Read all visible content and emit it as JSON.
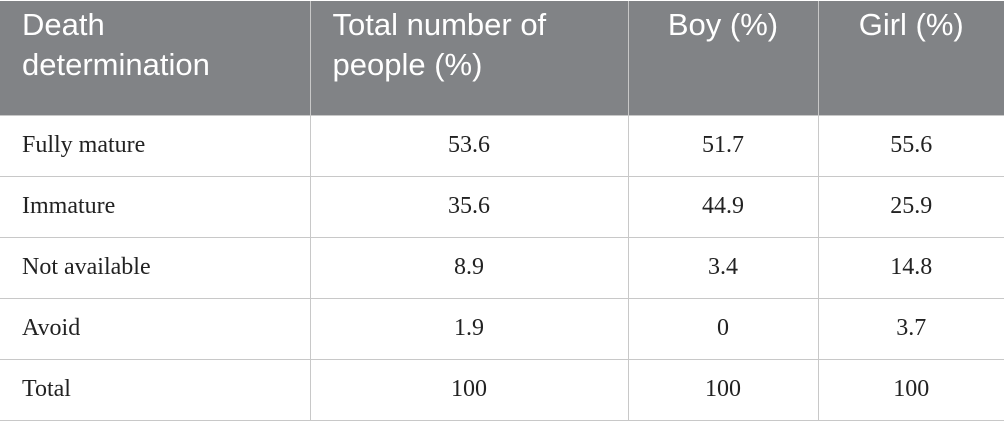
{
  "table": {
    "header": [
      "Death determination",
      "Total number of people (%)",
      "Boy (%)",
      "Girl (%)"
    ],
    "rows": [
      [
        "Fully mature",
        "53.6",
        "51.7",
        "55.6"
      ],
      [
        "Immature",
        "35.6",
        "44.9",
        "25.9"
      ],
      [
        "Not available",
        "8.9",
        "3.4",
        "14.8"
      ],
      [
        "Avoid",
        "1.9",
        "0",
        "3.7"
      ],
      [
        "Total",
        "100",
        "100",
        "100"
      ]
    ]
  }
}
